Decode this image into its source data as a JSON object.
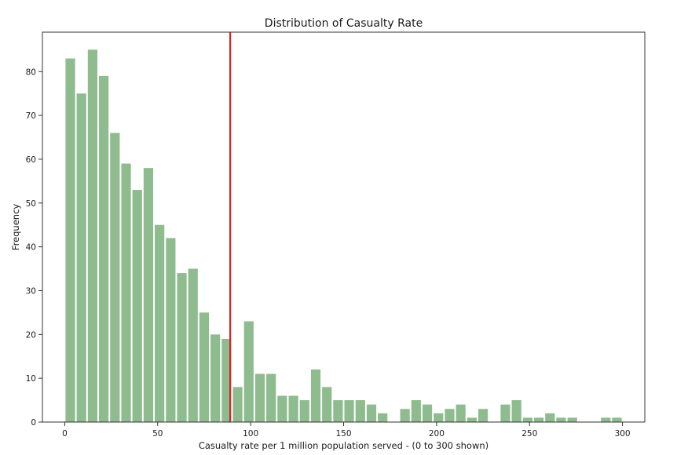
{
  "chart_data": {
    "type": "bar",
    "title": "Distribution of Casualty Rate",
    "xlabel": "Casualty rate per 1 million population served - (0 to 300 shown)",
    "ylabel": "Frequency",
    "xlim": [
      -12,
      312
    ],
    "ylim": [
      0,
      89
    ],
    "xticks": [
      0,
      50,
      100,
      150,
      200,
      250,
      300
    ],
    "yticks": [
      0,
      10,
      20,
      30,
      40,
      50,
      60,
      70,
      80
    ],
    "bin_width": 6,
    "bin_start": 0,
    "bar_color": "#8fbc8f",
    "values": [
      83,
      75,
      85,
      79,
      66,
      59,
      53,
      58,
      45,
      42,
      34,
      35,
      25,
      20,
      19,
      8,
      23,
      11,
      11,
      6,
      6,
      5,
      12,
      8,
      5,
      5,
      5,
      4,
      2,
      0,
      3,
      5,
      4,
      2,
      3,
      4,
      1,
      3,
      0,
      4,
      5,
      1,
      1,
      2,
      1,
      1,
      0,
      0,
      1,
      1
    ],
    "reference_line": {
      "x": 89,
      "color": "#d62728"
    },
    "grid": false
  }
}
